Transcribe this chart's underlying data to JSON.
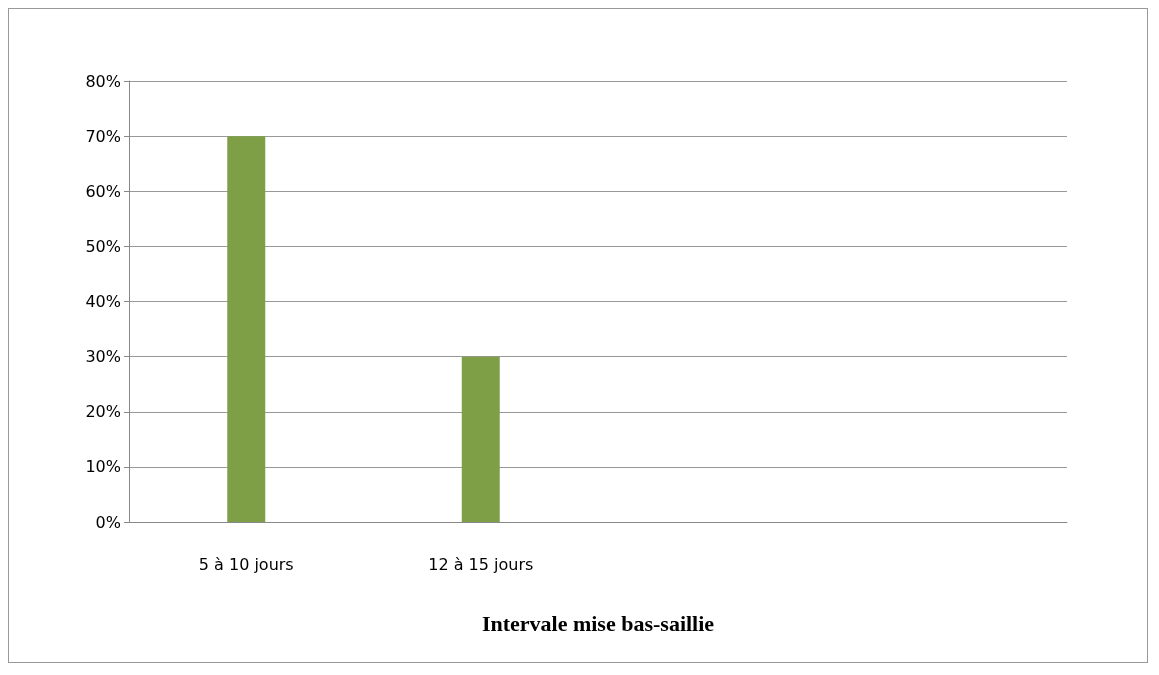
{
  "chart_data": {
    "type": "bar",
    "xlabel": "Intervale mise bas-saillie",
    "categories": [
      "5 à 10 jours",
      "12 à 15 jours",
      null,
      null
    ],
    "values": [
      70,
      30,
      null,
      null
    ],
    "color": "#7f9f46",
    "ylim": [
      0,
      80
    ],
    "yticks": [
      {
        "value": 0,
        "label": "0%"
      },
      {
        "value": 10,
        "label": "10%"
      },
      {
        "value": 20,
        "label": "20%"
      },
      {
        "value": 30,
        "label": "30%"
      },
      {
        "value": 40,
        "label": "40%"
      },
      {
        "value": 50,
        "label": "50%"
      },
      {
        "value": 60,
        "label": "60%"
      },
      {
        "value": 70,
        "label": "70%"
      },
      {
        "value": 80,
        "label": "80%"
      }
    ],
    "grid": true
  }
}
